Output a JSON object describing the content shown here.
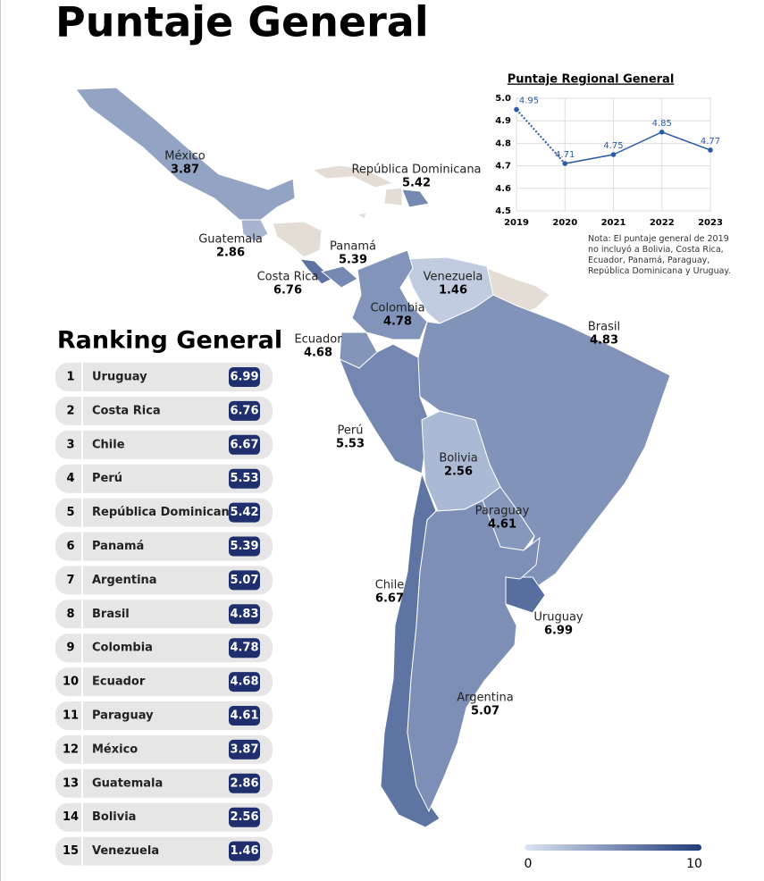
{
  "title": "Puntaje General",
  "map": {
    "countries": [
      {
        "name": "México",
        "score": 3.87
      },
      {
        "name": "Guatemala",
        "score": 2.86
      },
      {
        "name": "Costa Rica",
        "score": 6.76
      },
      {
        "name": "Panamá",
        "score": 5.39
      },
      {
        "name": "República Dominicana",
        "score": 5.42
      },
      {
        "name": "Venezuela",
        "score": 1.46
      },
      {
        "name": "Colombia",
        "score": 4.78
      },
      {
        "name": "Ecuador",
        "score": 4.68
      },
      {
        "name": "Brasil",
        "score": 4.83
      },
      {
        "name": "Perú",
        "score": 5.53
      },
      {
        "name": "Bolivia",
        "score": 2.56
      },
      {
        "name": "Paraguay",
        "score": 4.61
      },
      {
        "name": "Chile",
        "score": 6.67
      },
      {
        "name": "Uruguay",
        "score": 6.99
      },
      {
        "name": "Argentina",
        "score": 5.07
      }
    ]
  },
  "color_scale": {
    "min": 0,
    "max": 10,
    "colors": [
      "#dde5f3",
      "#1f3b7a"
    ]
  },
  "ranking": {
    "title": "Ranking General",
    "rows": [
      {
        "rank": 1,
        "country": "Uruguay",
        "score": 6.99
      },
      {
        "rank": 2,
        "country": "Costa Rica",
        "score": 6.76
      },
      {
        "rank": 3,
        "country": "Chile",
        "score": 6.67
      },
      {
        "rank": 4,
        "country": "Perú",
        "score": 5.53
      },
      {
        "rank": 5,
        "country": "República Dominicana",
        "score": 5.42
      },
      {
        "rank": 6,
        "country": "Panamá",
        "score": 5.39
      },
      {
        "rank": 7,
        "country": "Argentina",
        "score": 5.07
      },
      {
        "rank": 8,
        "country": "Brasil",
        "score": 4.83
      },
      {
        "rank": 9,
        "country": "Colombia",
        "score": 4.78
      },
      {
        "rank": 10,
        "country": "Ecuador",
        "score": 4.68
      },
      {
        "rank": 11,
        "country": "Paraguay",
        "score": 4.61
      },
      {
        "rank": 12,
        "country": "México",
        "score": 3.87
      },
      {
        "rank": 13,
        "country": "Guatemala",
        "score": 2.86
      },
      {
        "rank": 14,
        "country": "Bolivia",
        "score": 2.56
      },
      {
        "rank": 15,
        "country": "Venezuela",
        "score": 1.46
      }
    ]
  },
  "chart_data": {
    "type": "line",
    "title": "Puntaje Regional General",
    "categories": [
      "2019",
      "2020",
      "2021",
      "2022",
      "2023"
    ],
    "values": [
      4.95,
      4.71,
      4.75,
      4.85,
      4.77
    ],
    "color": "#2a5aa8",
    "first_segment_dotted": true,
    "ylim": [
      4.5,
      5.0
    ],
    "yticks": [
      4.5,
      4.6,
      4.7,
      4.8,
      4.9,
      {
        "value": 5.0,
        "label": "5.0"
      }
    ],
    "grid": true,
    "note": "Nota: El puntaje general de 2019 no incluyó a Bolivia, Costa Rica, Ecuador, Panamá, Paraguay, República Dominicana y Uruguay."
  }
}
